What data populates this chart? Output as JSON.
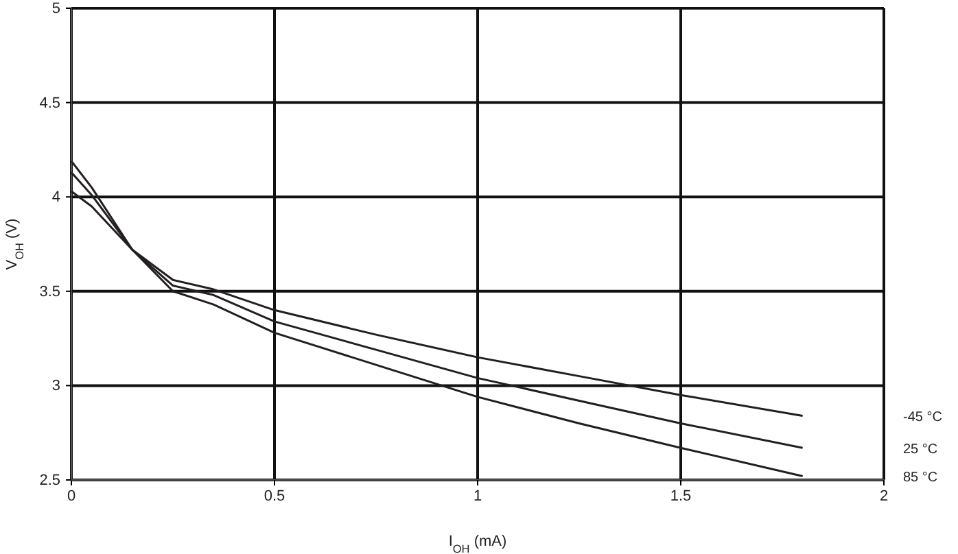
{
  "chart_data": {
    "type": "line",
    "xlabel": "I$_{OH}$ (mA)",
    "ylabel": "V$_{OH}$ (V)",
    "xlim": [
      0,
      2
    ],
    "ylim": [
      2.5,
      5
    ],
    "xticks": [
      0,
      0.5,
      1,
      1.5,
      2
    ],
    "yticks": [
      2.5,
      3,
      3.5,
      4,
      4.5,
      5
    ],
    "grid": true,
    "marker": "none",
    "line_style": "solid",
    "x": [
      0,
      0.05,
      0.15,
      0.25,
      0.35,
      0.5,
      0.75,
      1,
      1.25,
      1.5,
      1.8
    ],
    "series": [
      {
        "name": "-45 °C",
        "color": "#231f20",
        "values": [
          4.03,
          3.95,
          3.72,
          3.56,
          3.51,
          3.4,
          3.27,
          3.15,
          3.05,
          2.95,
          2.84
        ]
      },
      {
        "name": "25 °C",
        "color": "#231f20",
        "values": [
          4.13,
          4.01,
          3.72,
          3.53,
          3.48,
          3.34,
          3.19,
          3.04,
          2.92,
          2.8,
          2.67
        ]
      },
      {
        "name": "85 °C",
        "color": "#231f20",
        "values": [
          4.19,
          4.05,
          3.72,
          3.5,
          3.43,
          3.28,
          3.11,
          2.94,
          2.8,
          2.67,
          2.52
        ]
      }
    ]
  }
}
